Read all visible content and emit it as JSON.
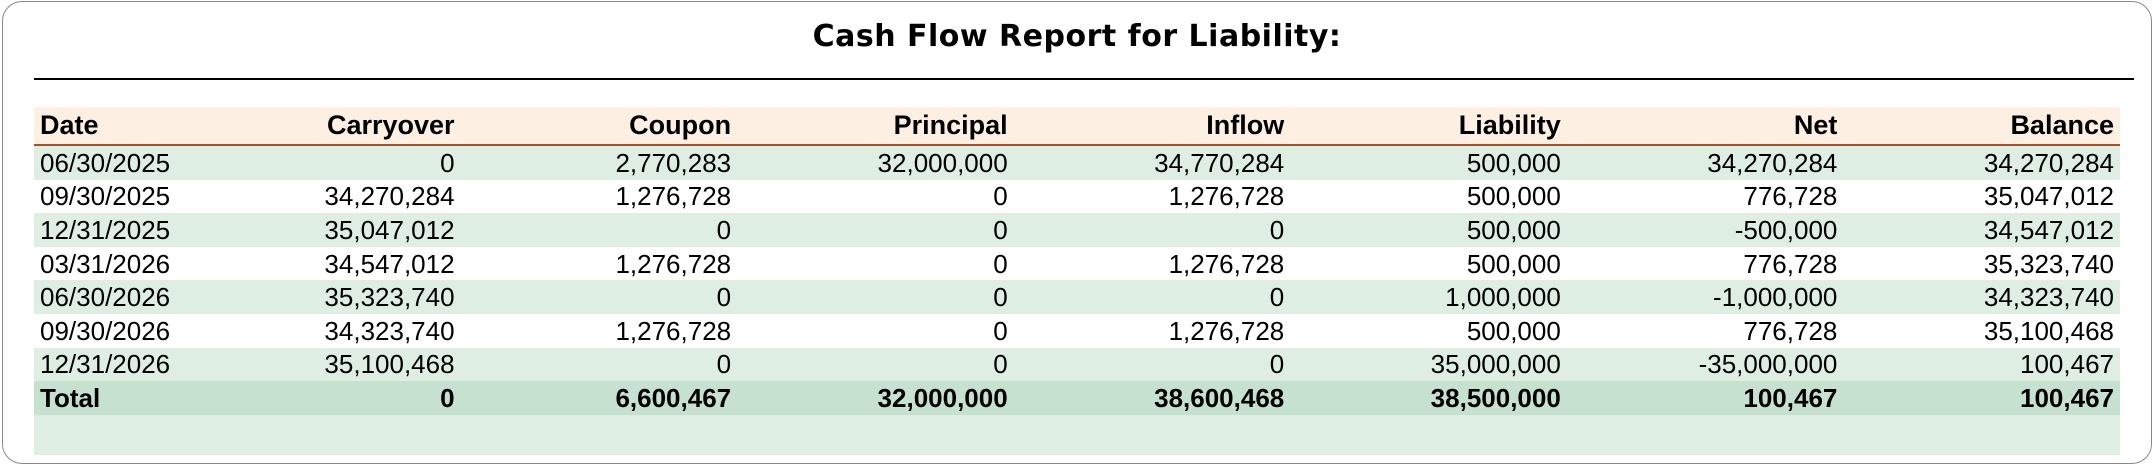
{
  "report": {
    "title": "Cash Flow Report for Liability:",
    "columns": [
      "Date",
      "Carryover",
      "Coupon",
      "Principal",
      "Inflow",
      "Liability",
      "Net",
      "Balance"
    ],
    "rows": [
      [
        "06/30/2025",
        "0",
        "2,770,283",
        "32,000,000",
        "34,770,284",
        "500,000",
        "34,270,284",
        "34,270,284"
      ],
      [
        "09/30/2025",
        "34,270,284",
        "1,276,728",
        "0",
        "1,276,728",
        "500,000",
        "776,728",
        "35,047,012"
      ],
      [
        "12/31/2025",
        "35,047,012",
        "0",
        "0",
        "0",
        "500,000",
        "-500,000",
        "34,547,012"
      ],
      [
        "03/31/2026",
        "34,547,012",
        "1,276,728",
        "0",
        "1,276,728",
        "500,000",
        "776,728",
        "35,323,740"
      ],
      [
        "06/30/2026",
        "35,323,740",
        "0",
        "0",
        "0",
        "1,000,000",
        "-1,000,000",
        "34,323,740"
      ],
      [
        "09/30/2026",
        "34,323,740",
        "1,276,728",
        "0",
        "1,276,728",
        "500,000",
        "776,728",
        "35,100,468"
      ],
      [
        "12/31/2026",
        "35,100,468",
        "0",
        "0",
        "0",
        "35,000,000",
        "-35,000,000",
        "100,467"
      ]
    ],
    "total": [
      "Total",
      "0",
      "6,600,467",
      "32,000,000",
      "38,600,468",
      "38,500,000",
      "100,467",
      "100,467"
    ],
    "colors": {
      "header_bg": "#fdf0e2",
      "header_rule": "#a0522d",
      "stripe": "#dfeee3",
      "total_bg": "#c7e1d0"
    }
  }
}
